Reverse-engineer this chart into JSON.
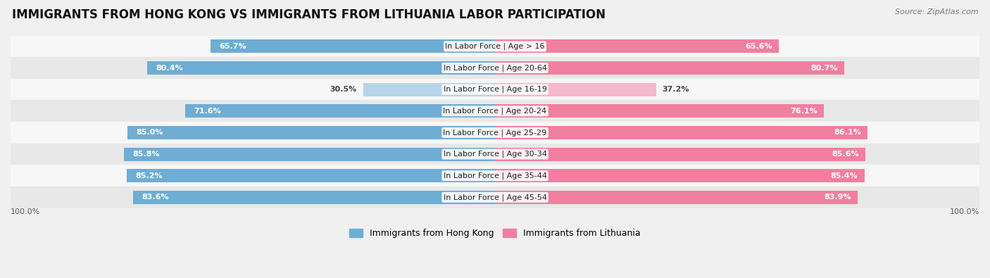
{
  "title": "IMMIGRANTS FROM HONG KONG VS IMMIGRANTS FROM LITHUANIA LABOR PARTICIPATION",
  "source": "Source: ZipAtlas.com",
  "categories": [
    "In Labor Force | Age > 16",
    "In Labor Force | Age 20-64",
    "In Labor Force | Age 16-19",
    "In Labor Force | Age 20-24",
    "In Labor Force | Age 25-29",
    "In Labor Force | Age 30-34",
    "In Labor Force | Age 35-44",
    "In Labor Force | Age 45-54"
  ],
  "hong_kong_values": [
    65.7,
    80.4,
    30.5,
    71.6,
    85.0,
    85.8,
    85.2,
    83.6
  ],
  "lithuania_values": [
    65.6,
    80.7,
    37.2,
    76.1,
    86.1,
    85.6,
    85.4,
    83.9
  ],
  "hong_kong_color": "#6eadd4",
  "lithuania_color": "#f07fa0",
  "hong_kong_color_light": "#b8d4e8",
  "lithuania_color_light": "#f5b8cc",
  "background_color": "#f0f0f0",
  "row_bg_light": "#f7f7f7",
  "row_bg_dark": "#e8e8e8",
  "title_fontsize": 12,
  "label_fontsize": 8,
  "value_fontsize": 8,
  "legend_fontsize": 9,
  "max_value": 100.0,
  "low_threshold": 50
}
